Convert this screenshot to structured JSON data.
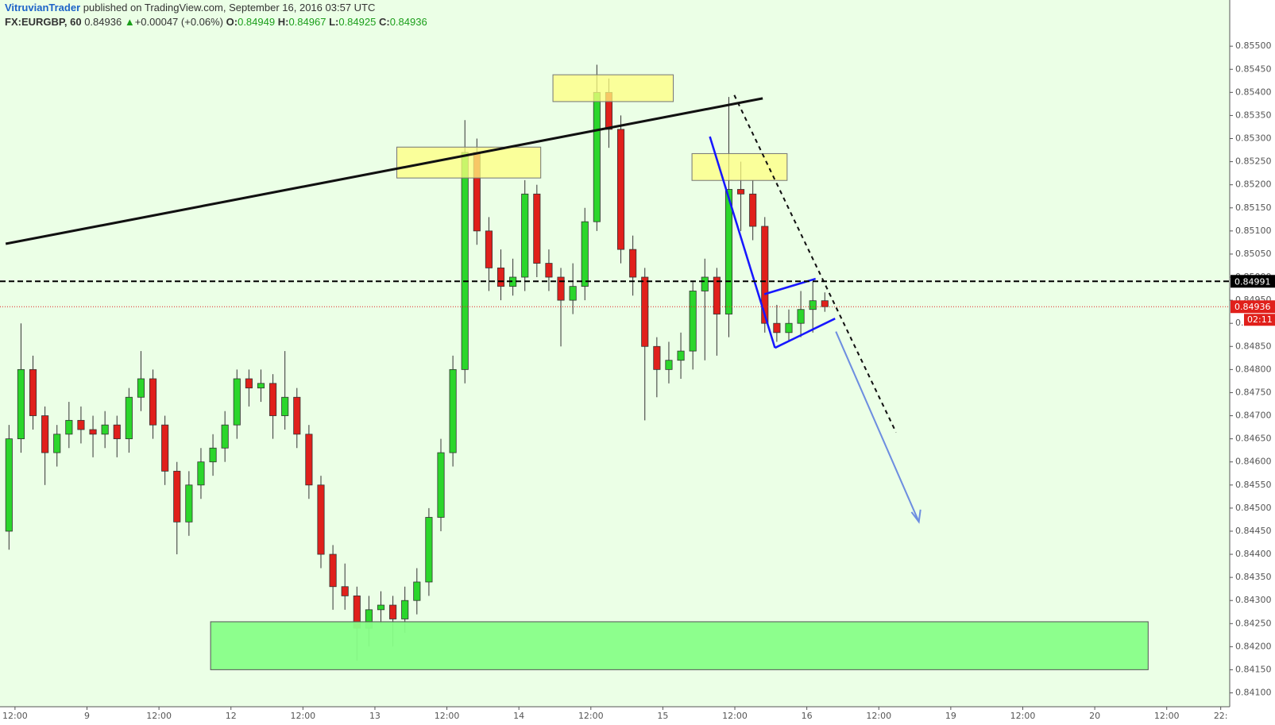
{
  "header": {
    "author": "VitruvianTrader",
    "published": " published on TradingView.com, September 16, 2016 03:57 UTC"
  },
  "chart_data": {
    "type": "candlestick",
    "legend": {
      "symbol": "FX:EURGBP, 60",
      "last": 0.84936,
      "arrow": "▲",
      "change": "+0.00047 (+0.06%)",
      "o_label": "O:",
      "o": 0.84949,
      "h_label": "H:",
      "h": 0.84967,
      "l_label": "L:",
      "l": 0.84925,
      "c_label": "C:",
      "c": 0.84936
    },
    "up_color": "#2bd62b",
    "down_color": "#e0201b",
    "background": "#ebffe6",
    "x": [
      11,
      13,
      15,
      17,
      19,
      21,
      23,
      25,
      27,
      29,
      31,
      33,
      35,
      37,
      39,
      41,
      43,
      45,
      47,
      49,
      51,
      53,
      55,
      57,
      59,
      61,
      63,
      65,
      67,
      69,
      71,
      73,
      75,
      77,
      79,
      81,
      83,
      85,
      87,
      89,
      91,
      93,
      95,
      97,
      99,
      101,
      103,
      105,
      107,
      109,
      111,
      113,
      115,
      117,
      119,
      121,
      123,
      125,
      127,
      129,
      131,
      133,
      135,
      137,
      139,
      141,
      143,
      145,
      147
    ],
    "open": [
      0.8445,
      0.8465,
      0.848,
      0.847,
      0.8462,
      0.8466,
      0.8469,
      0.8467,
      0.8466,
      0.8468,
      0.8465,
      0.8474,
      0.8478,
      0.8468,
      0.8458,
      0.8447,
      0.8455,
      0.846,
      0.8463,
      0.8468,
      0.8478,
      0.8476,
      0.8477,
      0.847,
      0.8474,
      0.8466,
      0.8455,
      0.844,
      0.8433,
      0.8431,
      0.8424,
      0.8428,
      0.8429,
      0.8426,
      0.843,
      0.8434,
      0.8448,
      0.8462,
      0.848,
      0.8527,
      0.851,
      0.8502,
      0.8498,
      0.85,
      0.8518,
      0.8503,
      0.85,
      0.8495,
      0.8498,
      0.8512,
      0.854,
      0.8532,
      0.8506,
      0.85,
      0.8485,
      0.848,
      0.8482,
      0.8484,
      0.8497,
      0.85,
      0.8492,
      0.8519,
      0.8518,
      0.8511,
      0.849,
      0.8488,
      0.849,
      0.8493,
      0.84949
    ],
    "high": [
      0.8468,
      0.849,
      0.8483,
      0.8472,
      0.8468,
      0.8473,
      0.8472,
      0.847,
      0.8471,
      0.847,
      0.8476,
      0.8484,
      0.848,
      0.847,
      0.846,
      0.8458,
      0.8463,
      0.8466,
      0.8471,
      0.848,
      0.848,
      0.848,
      0.8479,
      0.8484,
      0.8476,
      0.8468,
      0.8457,
      0.8442,
      0.8438,
      0.8433,
      0.8431,
      0.8432,
      0.8431,
      0.8433,
      0.8437,
      0.845,
      0.8465,
      0.8483,
      0.8534,
      0.853,
      0.8513,
      0.8506,
      0.8504,
      0.8521,
      0.852,
      0.8506,
      0.8502,
      0.8503,
      0.8515,
      0.8546,
      0.8543,
      0.8535,
      0.8509,
      0.8502,
      0.8487,
      0.8486,
      0.8488,
      0.8499,
      0.8504,
      0.8502,
      0.8539,
      0.8525,
      0.8521,
      0.8513,
      0.8494,
      0.8493,
      0.8497,
      0.8499,
      0.84967
    ],
    "low": [
      0.8441,
      0.8462,
      0.8467,
      0.8455,
      0.8459,
      0.8463,
      0.8464,
      0.8461,
      0.8463,
      0.8461,
      0.8462,
      0.8471,
      0.8465,
      0.8455,
      0.844,
      0.8444,
      0.8452,
      0.8457,
      0.846,
      0.8465,
      0.8472,
      0.8473,
      0.8465,
      0.8467,
      0.8463,
      0.8452,
      0.8437,
      0.8428,
      0.8428,
      0.8417,
      0.842,
      0.8425,
      0.842,
      0.8423,
      0.8427,
      0.8431,
      0.8445,
      0.8459,
      0.8477,
      0.8507,
      0.8497,
      0.8495,
      0.8496,
      0.8497,
      0.85,
      0.8497,
      0.8485,
      0.8492,
      0.8495,
      0.851,
      0.8528,
      0.8503,
      0.8496,
      0.8469,
      0.8474,
      0.8477,
      0.8478,
      0.848,
      0.8482,
      0.8483,
      0.8487,
      0.851,
      0.8508,
      0.8488,
      0.8486,
      0.8486,
      0.8487,
      0.8488,
      0.84925
    ],
    "close": [
      0.8465,
      0.848,
      0.847,
      0.8462,
      0.8466,
      0.8469,
      0.8467,
      0.8466,
      0.8468,
      0.8465,
      0.8474,
      0.8478,
      0.8468,
      0.8458,
      0.8447,
      0.8455,
      0.846,
      0.8463,
      0.8468,
      0.8478,
      0.8476,
      0.8477,
      0.847,
      0.8474,
      0.8466,
      0.8455,
      0.844,
      0.8433,
      0.8431,
      0.8424,
      0.8428,
      0.8429,
      0.8426,
      0.843,
      0.8434,
      0.8448,
      0.8462,
      0.848,
      0.8527,
      0.851,
      0.8502,
      0.8498,
      0.85,
      0.8518,
      0.8503,
      0.85,
      0.8495,
      0.8498,
      0.8512,
      0.854,
      0.8532,
      0.8506,
      0.85,
      0.8485,
      0.848,
      0.8482,
      0.8484,
      0.8497,
      0.85,
      0.8492,
      0.8519,
      0.8518,
      0.8511,
      0.849,
      0.8488,
      0.849,
      0.8493,
      0.84949,
      0.84936
    ],
    "xlim": [
      9.5,
      214.5
    ],
    "xticks": [
      {
        "value": 12,
        "label": "12:00"
      },
      {
        "value": 24,
        "label": "9"
      },
      {
        "value": 36,
        "label": "12:00"
      },
      {
        "value": 48,
        "label": "12"
      },
      {
        "value": 60,
        "label": "12:00"
      },
      {
        "value": 72,
        "label": "13"
      },
      {
        "value": 84,
        "label": "12:00"
      },
      {
        "value": 96,
        "label": "14"
      },
      {
        "value": 108,
        "label": "12:00"
      },
      {
        "value": 120,
        "label": "15"
      },
      {
        "value": 132,
        "label": "12:00"
      },
      {
        "value": 144,
        "label": "16"
      },
      {
        "value": 156,
        "label": "12:00"
      },
      {
        "value": 168,
        "label": "19"
      },
      {
        "value": 180,
        "label": "12:00"
      },
      {
        "value": 192,
        "label": "20"
      },
      {
        "value": 204,
        "label": "12:00"
      },
      {
        "value": 213,
        "label": "22:"
      }
    ],
    "ylim": [
      0.8407,
      0.856
    ],
    "yticks": [
      {
        "value": 0.841,
        "label": "0.84100"
      },
      {
        "value": 0.8415,
        "label": "0.84150"
      },
      {
        "value": 0.842,
        "label": "0.84200"
      },
      {
        "value": 0.8425,
        "label": "0.84250"
      },
      {
        "value": 0.843,
        "label": "0.84300"
      },
      {
        "value": 0.8435,
        "label": "0.84350"
      },
      {
        "value": 0.844,
        "label": "0.84400"
      },
      {
        "value": 0.8445,
        "label": "0.84450"
      },
      {
        "value": 0.845,
        "label": "0.84500"
      },
      {
        "value": 0.8455,
        "label": "0.84550"
      },
      {
        "value": 0.846,
        "label": "0.84600"
      },
      {
        "value": 0.8465,
        "label": "0.84650"
      },
      {
        "value": 0.847,
        "label": "0.84700"
      },
      {
        "value": 0.8475,
        "label": "0.84750"
      },
      {
        "value": 0.848,
        "label": "0.84800"
      },
      {
        "value": 0.8485,
        "label": "0.84850"
      },
      {
        "value": 0.849,
        "label": "0.84900"
      },
      {
        "value": 0.8495,
        "label": "0.84950"
      },
      {
        "value": 0.85,
        "label": "0.85000"
      },
      {
        "value": 0.8505,
        "label": "0.85050"
      },
      {
        "value": 0.851,
        "label": "0.85100"
      },
      {
        "value": 0.8515,
        "label": "0.85150"
      },
      {
        "value": 0.852,
        "label": "0.85200"
      },
      {
        "value": 0.8525,
        "label": "0.85250"
      },
      {
        "value": 0.853,
        "label": "0.85300"
      },
      {
        "value": 0.8535,
        "label": "0.85350"
      },
      {
        "value": 0.854,
        "label": "0.85400"
      },
      {
        "value": 0.8545,
        "label": "0.85450"
      },
      {
        "value": 0.855,
        "label": "0.85500"
      }
    ],
    "grid": false,
    "price_lines": [
      {
        "value": 0.84991,
        "color": "#000000",
        "style": "dashed"
      },
      {
        "value": 0.84936,
        "color": "#e0201b",
        "style": "dotted",
        "countdown": "02:11"
      }
    ]
  }
}
